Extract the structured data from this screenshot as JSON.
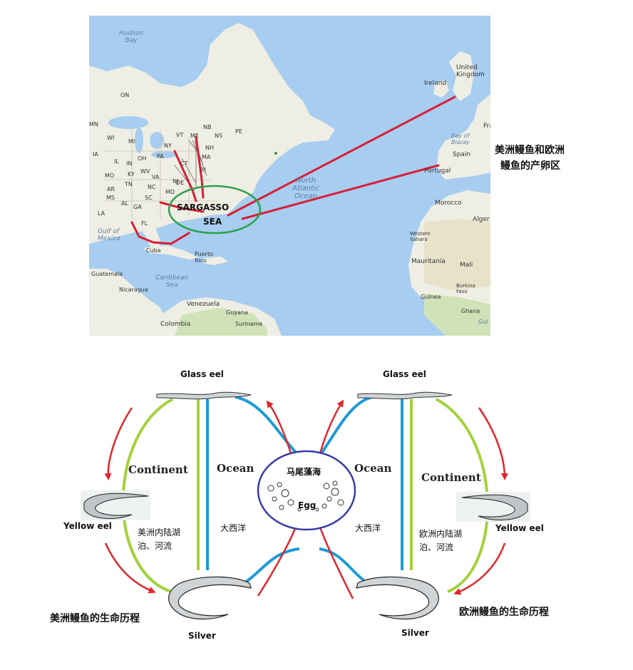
{
  "map": {
    "labels": {
      "hudson_bay": "Hudson\nBay",
      "on": "ON",
      "mn": "MN",
      "wi": "WI",
      "mi": "MI",
      "ia": "IA",
      "il": "IL",
      "in": "IN",
      "oh": "OH",
      "pa": "PA",
      "ny": "NY",
      "vt": "VT",
      "me": "ME",
      "nb": "NB",
      "ns": "NS",
      "pe": "PE",
      "nh": "NH",
      "ma": "MA",
      "ct": "CT",
      "ri": "RI",
      "nj": "NJ",
      "de": "DE",
      "md": "MD",
      "wv": "WV",
      "va": "VA",
      "ky": "KY",
      "mo": "MO",
      "tn": "TN",
      "ar": "AR",
      "nc": "NC",
      "sc": "SC",
      "ga": "GA",
      "al": "AL",
      "ms": "MS",
      "la": "LA",
      "fl": "FL",
      "gulf_of_mexico": "Gulf of\nMexico",
      "cuba": "Cuba",
      "puerto_rico": "Puerto\nRico",
      "guatemala": "Guatemala",
      "nicaragua": "Nicaragua",
      "caribbean_sea": "Caribbean\nSea",
      "venezuela": "Venezuela",
      "colombia": "Colombia",
      "guyana": "Guyana",
      "suriname": "Suriname",
      "north_atlantic_ocean": "North\nAtlantic\nOcean",
      "ireland": "Ireland",
      "united_kingdom": "United\nKingdom",
      "france": "France",
      "bay_of_biscay": "Bay of\nBiscay",
      "spain": "Spain",
      "portugal": "Portugal",
      "morocco": "Morocco",
      "algeria": "Alger",
      "western_sahara": "Western\nSahara",
      "mauritania": "Mauritania",
      "mali": "Mali",
      "burkina_faso": "Burkina\nFaso",
      "guinea": "Guinea",
      "ghana": "Ghana",
      "gulf": "Gul"
    },
    "sargasso_label_1": "SARGASSO",
    "sargasso_label_2": "SEA",
    "spawning_note_line1": "美洲鳗鱼和欧洲",
    "spawning_note_line2": "鳗鱼的产卵区"
  },
  "cycle": {
    "left": {
      "glass_eel": "Glass eel",
      "continent": "Continent",
      "ocean": "Ocean",
      "yellow_eel": "Yellow eel",
      "inland_line1": "美洲内陆湖",
      "inland_line2": "泊、河流",
      "atlantic": "大西洋",
      "silver": "Silver",
      "life_cycle_title": "美洲鳗鱼的生命历程"
    },
    "right": {
      "glass_eel": "Glass eel",
      "continent": "Continent",
      "ocean": "Ocean",
      "yellow_eel": "Yellow eel",
      "inland_line1": "欧洲内陆湖",
      "inland_line2": "泊、河流",
      "atlantic": "大西洋",
      "silver": "Silver",
      "life_cycle_title": "欧洲鳗鱼的生命历程"
    },
    "center": {
      "sargasso_cn": "马尾藻海",
      "egg": "Egg"
    }
  },
  "colors": {
    "land": "#efeee4",
    "water": "#a7cdf0",
    "route_red": "#d81e36",
    "sargasso_circle": "#2aa14a",
    "arrow_red": "#e0262b",
    "green_path": "#a3d13c",
    "blue_path": "#1d9bd6",
    "egg_circle": "#3a3aa8"
  }
}
